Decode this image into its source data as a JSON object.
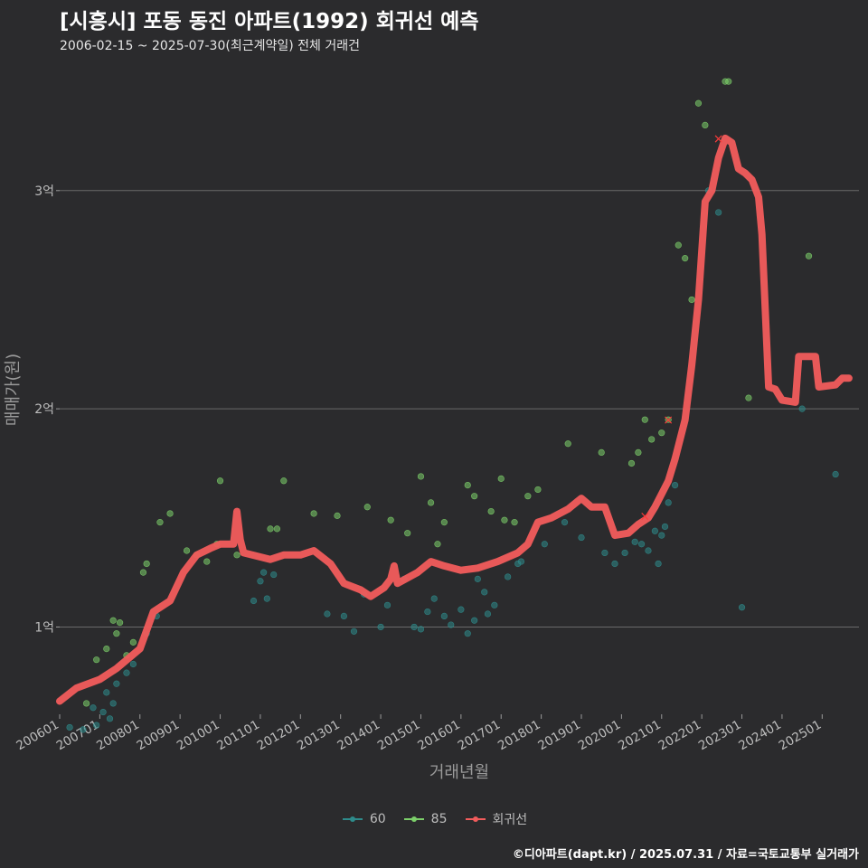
{
  "title": "[시흥시] 포동 동진 아파트(1992) 회귀선 예측",
  "subtitle": "2006-02-15 ~ 2025-07-30(최근계약일) 전체 거래건",
  "credit": "©디아파트(dapt.kr) / 2025.07.31 / 자료=국토교통부 실거래가",
  "colors": {
    "background": "#2b2b2d",
    "s60": "#2e8b8b",
    "s85": "#7ccf6a",
    "regression": "#f25c5c",
    "grid": "#6a6a6a",
    "text": "#bdbdbd"
  },
  "chart_data": {
    "type": "scatter",
    "xlabel": "거래년월",
    "ylabel": "매매가(원)",
    "xlim": [
      "2006-01",
      "2025-12"
    ],
    "ylim": [
      0.6,
      3.6
    ],
    "y_unit": "억",
    "yticks": [
      1,
      2,
      3
    ],
    "ytick_labels": [
      "1억",
      "2억",
      "3억"
    ],
    "xtick_labels": [
      "200601",
      "200701",
      "200801",
      "200901",
      "201001",
      "201101",
      "201201",
      "201301",
      "201401",
      "201501",
      "201601",
      "201701",
      "201801",
      "201901",
      "202001",
      "202101",
      "202201",
      "202301",
      "202401",
      "202501"
    ],
    "grid": true,
    "legend_position": "bottom",
    "series": [
      {
        "name": "60",
        "color": "#2e8b8b",
        "points": [
          [
            "2006-04",
            0.54
          ],
          [
            "2006-08",
            0.53
          ],
          [
            "2006-11",
            0.63
          ],
          [
            "2006-12",
            0.55
          ],
          [
            "2007-02",
            0.61
          ],
          [
            "2007-03",
            0.7
          ],
          [
            "2007-04",
            0.58
          ],
          [
            "2007-05",
            0.65
          ],
          [
            "2007-06",
            0.74
          ],
          [
            "2007-09",
            0.79
          ],
          [
            "2007-11",
            0.83
          ],
          [
            "2008-03",
            0.97
          ],
          [
            "2008-06",
            1.05
          ],
          [
            "2010-11",
            1.12
          ],
          [
            "2011-01",
            1.21
          ],
          [
            "2011-02",
            1.25
          ],
          [
            "2011-03",
            1.13
          ],
          [
            "2011-05",
            1.24
          ],
          [
            "2012-09",
            1.06
          ],
          [
            "2013-02",
            1.05
          ],
          [
            "2013-05",
            0.98
          ],
          [
            "2013-08",
            1.15
          ],
          [
            "2014-01",
            1.0
          ],
          [
            "2014-03",
            1.1
          ],
          [
            "2014-08",
            1.22
          ],
          [
            "2014-11",
            1.0
          ],
          [
            "2015-01",
            0.99
          ],
          [
            "2015-03",
            1.07
          ],
          [
            "2015-05",
            1.13
          ],
          [
            "2015-08",
            1.05
          ],
          [
            "2015-10",
            1.01
          ],
          [
            "2016-01",
            1.08
          ],
          [
            "2016-03",
            0.97
          ],
          [
            "2016-05",
            1.03
          ],
          [
            "2016-06",
            1.22
          ],
          [
            "2016-08",
            1.16
          ],
          [
            "2016-09",
            1.06
          ],
          [
            "2016-11",
            1.1
          ],
          [
            "2017-03",
            1.23
          ],
          [
            "2017-06",
            1.29
          ],
          [
            "2017-07",
            1.3
          ],
          [
            "2018-02",
            1.38
          ],
          [
            "2018-08",
            1.48
          ],
          [
            "2019-01",
            1.41
          ],
          [
            "2019-08",
            1.34
          ],
          [
            "2019-11",
            1.29
          ],
          [
            "2020-02",
            1.34
          ],
          [
            "2020-05",
            1.39
          ],
          [
            "2020-07",
            1.38
          ],
          [
            "2020-09",
            1.35
          ],
          [
            "2020-11",
            1.44
          ],
          [
            "2020-12",
            1.29
          ],
          [
            "2021-01",
            1.42
          ],
          [
            "2021-02",
            1.46
          ],
          [
            "2021-03",
            1.57
          ],
          [
            "2021-05",
            1.65
          ],
          [
            "2022-03",
            3.0
          ],
          [
            "2022-06",
            2.9
          ],
          [
            "2023-01",
            1.09
          ],
          [
            "2024-07",
            2.0
          ],
          [
            "2025-05",
            1.7
          ]
        ]
      },
      {
        "name": "85",
        "color": "#7ccf6a",
        "points": [
          [
            "2006-09",
            0.65
          ],
          [
            "2006-12",
            0.85
          ],
          [
            "2007-03",
            0.9
          ],
          [
            "2007-05",
            1.03
          ],
          [
            "2007-06",
            0.97
          ],
          [
            "2007-07",
            1.02
          ],
          [
            "2007-09",
            0.87
          ],
          [
            "2007-11",
            0.93
          ],
          [
            "2008-02",
            1.25
          ],
          [
            "2008-03",
            1.29
          ],
          [
            "2008-07",
            1.48
          ],
          [
            "2008-10",
            1.52
          ],
          [
            "2009-03",
            1.35
          ],
          [
            "2009-06",
            1.33
          ],
          [
            "2009-09",
            1.3
          ],
          [
            "2009-12",
            1.38
          ],
          [
            "2010-01",
            1.67
          ],
          [
            "2010-06",
            1.33
          ],
          [
            "2011-04",
            1.45
          ],
          [
            "2011-06",
            1.45
          ],
          [
            "2011-08",
            1.67
          ],
          [
            "2012-05",
            1.52
          ],
          [
            "2012-12",
            1.51
          ],
          [
            "2013-09",
            1.55
          ],
          [
            "2014-04",
            1.49
          ],
          [
            "2014-09",
            1.43
          ],
          [
            "2015-01",
            1.69
          ],
          [
            "2015-04",
            1.57
          ],
          [
            "2015-06",
            1.38
          ],
          [
            "2015-08",
            1.48
          ],
          [
            "2016-03",
            1.65
          ],
          [
            "2016-05",
            1.6
          ],
          [
            "2016-10",
            1.53
          ],
          [
            "2017-01",
            1.68
          ],
          [
            "2017-02",
            1.49
          ],
          [
            "2017-05",
            1.48
          ],
          [
            "2017-09",
            1.6
          ],
          [
            "2017-12",
            1.63
          ],
          [
            "2018-09",
            1.84
          ],
          [
            "2019-07",
            1.8
          ],
          [
            "2020-04",
            1.75
          ],
          [
            "2020-06",
            1.8
          ],
          [
            "2020-08",
            1.95
          ],
          [
            "2020-10",
            1.86
          ],
          [
            "2021-01",
            1.89
          ],
          [
            "2021-03",
            1.95
          ],
          [
            "2021-06",
            2.75
          ],
          [
            "2021-08",
            2.69
          ],
          [
            "2021-10",
            2.5
          ],
          [
            "2021-12",
            3.4
          ],
          [
            "2022-02",
            3.3
          ],
          [
            "2022-08",
            3.5
          ],
          [
            "2022-09",
            3.5
          ],
          [
            "2023-03",
            2.05
          ],
          [
            "2024-09",
            2.7
          ]
        ]
      },
      {
        "name": "회귀선",
        "color": "#f25c5c",
        "points": [
          [
            "2006-01",
            0.66
          ],
          [
            "2006-06",
            0.72
          ],
          [
            "2007-01",
            0.76
          ],
          [
            "2007-06",
            0.81
          ],
          [
            "2008-01",
            0.9
          ],
          [
            "2008-05",
            1.07
          ],
          [
            "2008-10",
            1.12
          ],
          [
            "2009-02",
            1.25
          ],
          [
            "2009-06",
            1.33
          ],
          [
            "2009-10",
            1.36
          ],
          [
            "2010-01",
            1.38
          ],
          [
            "2010-05",
            1.38
          ],
          [
            "2010-06",
            1.53
          ],
          [
            "2010-07",
            1.4
          ],
          [
            "2010-08",
            1.34
          ],
          [
            "2011-04",
            1.31
          ],
          [
            "2011-08",
            1.33
          ],
          [
            "2012-01",
            1.33
          ],
          [
            "2012-05",
            1.35
          ],
          [
            "2012-10",
            1.29
          ],
          [
            "2013-02",
            1.2
          ],
          [
            "2013-07",
            1.17
          ],
          [
            "2013-10",
            1.14
          ],
          [
            "2014-02",
            1.18
          ],
          [
            "2014-04",
            1.22
          ],
          [
            "2014-05",
            1.28
          ],
          [
            "2014-06",
            1.2
          ],
          [
            "2014-12",
            1.25
          ],
          [
            "2015-04",
            1.3
          ],
          [
            "2015-08",
            1.28
          ],
          [
            "2016-01",
            1.26
          ],
          [
            "2016-06",
            1.27
          ],
          [
            "2016-12",
            1.3
          ],
          [
            "2017-06",
            1.34
          ],
          [
            "2017-09",
            1.38
          ],
          [
            "2017-12",
            1.48
          ],
          [
            "2018-04",
            1.5
          ],
          [
            "2018-09",
            1.54
          ],
          [
            "2019-01",
            1.59
          ],
          [
            "2019-04",
            1.55
          ],
          [
            "2019-08",
            1.55
          ],
          [
            "2019-11",
            1.42
          ],
          [
            "2020-03",
            1.43
          ],
          [
            "2020-06",
            1.47
          ],
          [
            "2020-09",
            1.5
          ],
          [
            "2020-11",
            1.55
          ],
          [
            "2021-01",
            1.61
          ],
          [
            "2021-03",
            1.67
          ],
          [
            "2021-05",
            1.77
          ],
          [
            "2021-08",
            1.95
          ],
          [
            "2021-10",
            2.2
          ],
          [
            "2021-12",
            2.5
          ],
          [
            "2022-02",
            2.95
          ],
          [
            "2022-04",
            3.0
          ],
          [
            "2022-06",
            3.15
          ],
          [
            "2022-08",
            3.24
          ],
          [
            "2022-10",
            3.22
          ],
          [
            "2022-12",
            3.1
          ],
          [
            "2023-02",
            3.08
          ],
          [
            "2023-04",
            3.05
          ],
          [
            "2023-06",
            2.97
          ],
          [
            "2023-07",
            2.8
          ],
          [
            "2023-09",
            2.1
          ],
          [
            "2023-11",
            2.09
          ],
          [
            "2024-01",
            2.04
          ],
          [
            "2024-05",
            2.03
          ],
          [
            "2024-06",
            2.24
          ],
          [
            "2024-11",
            2.24
          ],
          [
            "2024-12",
            2.1
          ],
          [
            "2025-05",
            2.11
          ],
          [
            "2025-07",
            2.14
          ],
          [
            "2025-09",
            2.14
          ]
        ]
      }
    ],
    "highlights": [
      {
        "label": "×",
        "x": "2020-08",
        "y": 1.51
      },
      {
        "label": "×",
        "x": "2021-03",
        "y": 1.95
      },
      {
        "label": "×",
        "x": "2022-06",
        "y": 3.24
      }
    ]
  }
}
